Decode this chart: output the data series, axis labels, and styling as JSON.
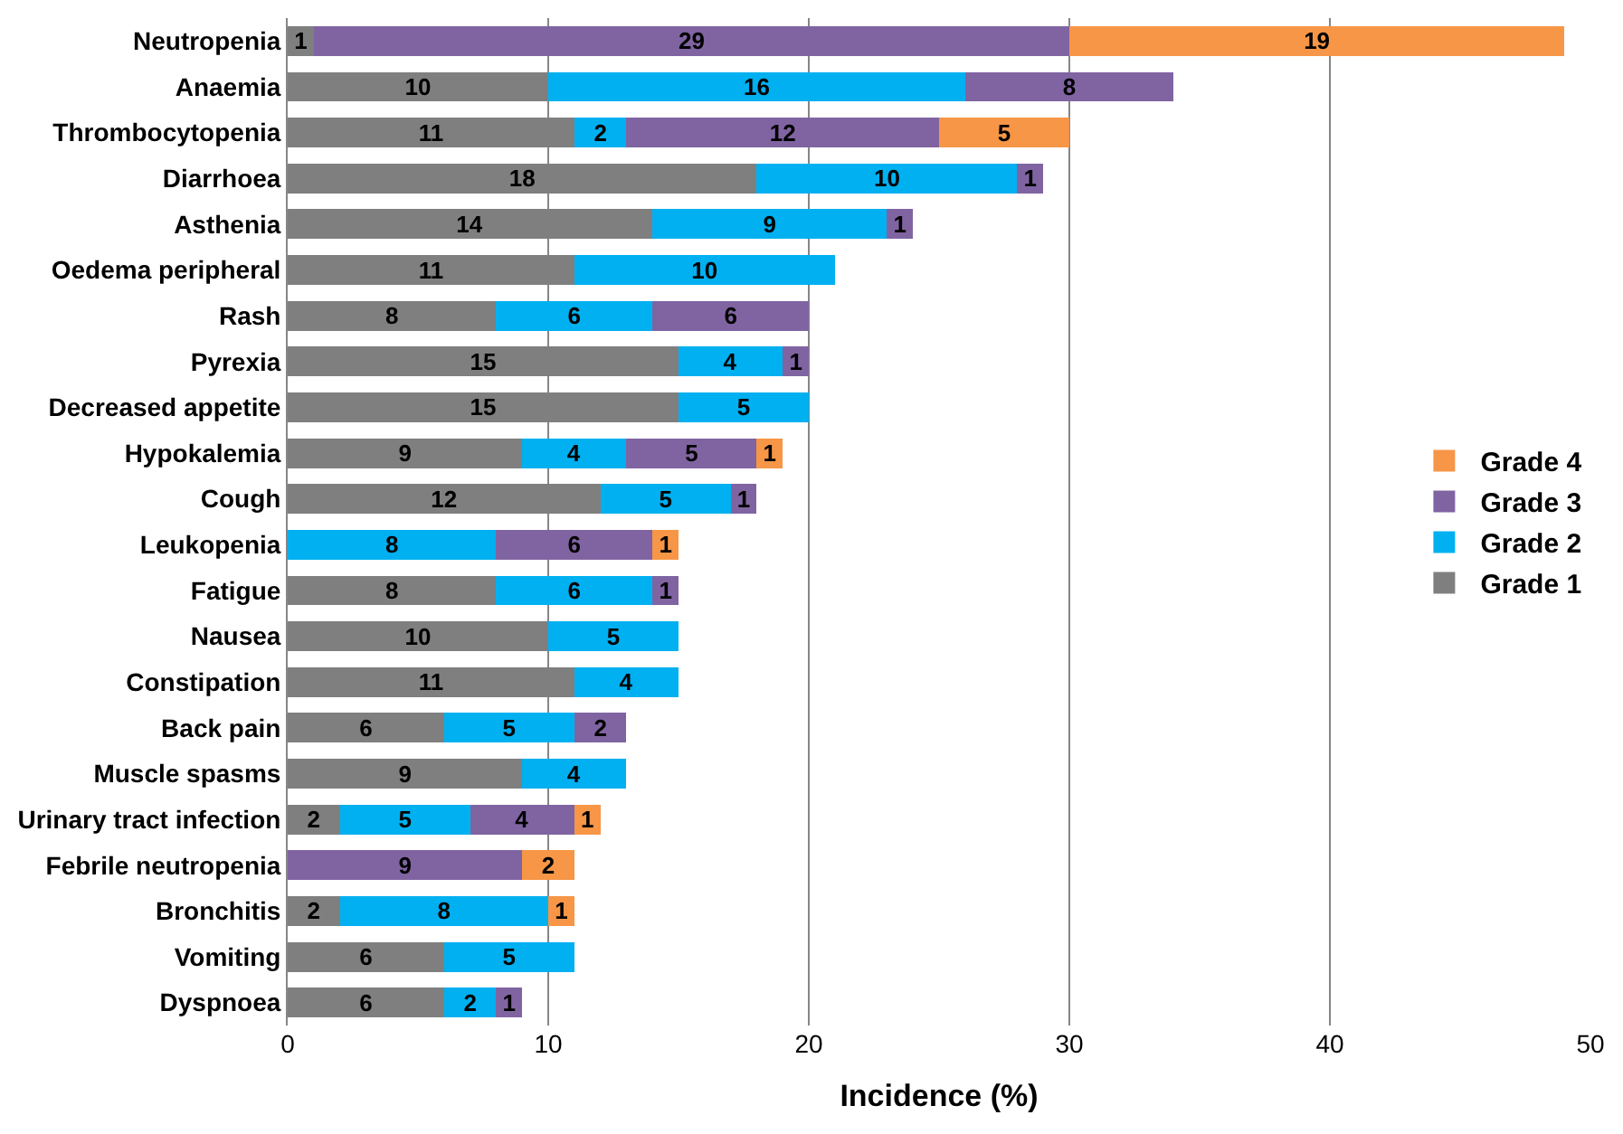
{
  "chart_data": {
    "type": "bar",
    "orientation": "horizontal",
    "stacked": true,
    "xlabel": "Incidence (%)",
    "categories": [
      "Neutropenia",
      "Anaemia",
      "Thrombocytopenia",
      "Diarrhoea",
      "Asthenia",
      "Oedema peripheral",
      "Rash",
      "Pyrexia",
      "Decreased appetite",
      "Hypokalemia",
      "Cough",
      "Leukopenia",
      "Fatigue",
      "Nausea",
      "Constipation",
      "Back pain",
      "Muscle spasms",
      "Urinary tract infection",
      "Febrile neutropenia",
      "Bronchitis",
      "Vomiting",
      "Dyspnoea"
    ],
    "series": [
      {
        "name": "Grade 1",
        "color": "#7f7f7f",
        "values": [
          1,
          10,
          11,
          18,
          14,
          11,
          8,
          15,
          15,
          9,
          12,
          null,
          8,
          10,
          11,
          6,
          9,
          2,
          null,
          2,
          6,
          6
        ]
      },
      {
        "name": "Grade 2",
        "color": "#00b0f0",
        "values": [
          null,
          16,
          2,
          10,
          9,
          10,
          6,
          4,
          5,
          4,
          5,
          8,
          6,
          5,
          4,
          5,
          4,
          5,
          null,
          8,
          5,
          2
        ]
      },
      {
        "name": "Grade 3",
        "color": "#8064a2",
        "values": [
          29,
          8,
          12,
          1,
          1,
          null,
          6,
          1,
          null,
          5,
          1,
          6,
          1,
          null,
          null,
          2,
          null,
          4,
          9,
          null,
          null,
          1
        ]
      },
      {
        "name": "Grade 4",
        "color": "#f79646",
        "values": [
          19,
          null,
          5,
          null,
          null,
          null,
          null,
          null,
          null,
          1,
          null,
          1,
          null,
          null,
          null,
          null,
          null,
          1,
          2,
          1,
          null,
          null
        ]
      }
    ],
    "xlim": [
      0,
      50
    ],
    "xticks": [
      0,
      10,
      20,
      30,
      40,
      50
    ],
    "grid": "x",
    "legend": "right",
    "data_labels": true
  }
}
